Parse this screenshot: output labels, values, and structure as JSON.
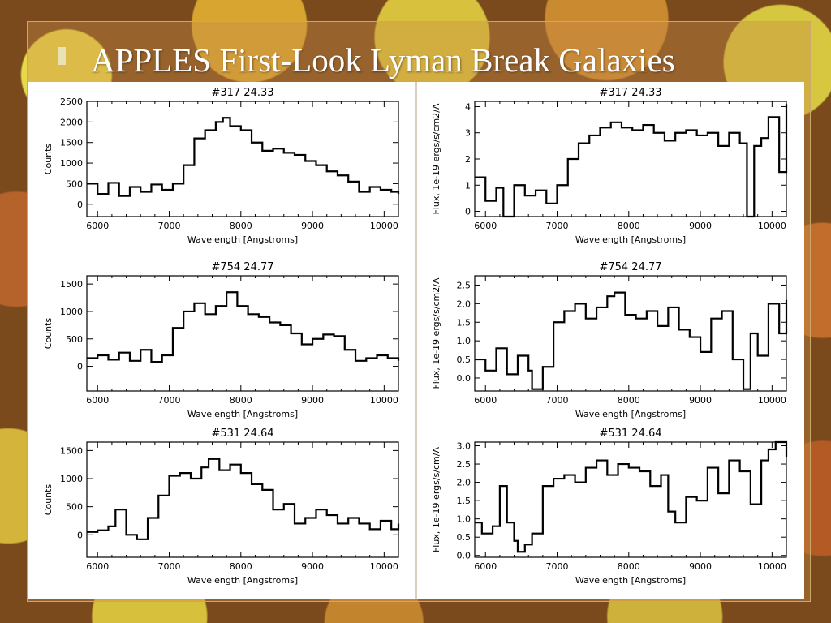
{
  "slide": {
    "title": "APPLES First-Look Lyman Break Galaxies"
  },
  "colors": {
    "line": "#000000",
    "panel": "#ffffff",
    "title": "#ffffff"
  },
  "chart_data": [
    {
      "type": "line",
      "title": "#317    24.33",
      "xlabel": "Wavelength [Angstroms]",
      "ylabel": "Counts",
      "xlim": [
        5850,
        10200
      ],
      "ylim": [
        -300,
        2500
      ],
      "xticks": [
        6000,
        7000,
        8000,
        9000,
        10000
      ],
      "yticks": [
        0,
        500,
        1000,
        1500,
        2000,
        2500
      ],
      "x": [
        5850,
        6000,
        6150,
        6300,
        6450,
        6600,
        6750,
        6900,
        7050,
        7200,
        7350,
        7500,
        7650,
        7750,
        7850,
        8000,
        8150,
        8300,
        8450,
        8600,
        8750,
        8900,
        9050,
        9200,
        9350,
        9500,
        9650,
        9800,
        9950,
        10100,
        10200
      ],
      "values": [
        500,
        250,
        520,
        200,
        420,
        300,
        480,
        350,
        500,
        950,
        1600,
        1800,
        2000,
        2100,
        1900,
        1800,
        1500,
        1300,
        1350,
        1250,
        1200,
        1050,
        950,
        800,
        700,
        550,
        300,
        420,
        350,
        300,
        250
      ]
    },
    {
      "type": "line",
      "title": "#317    24.33",
      "xlabel": "Wavelength [Angstroms]",
      "ylabel": "Flux, 1e-19 ergs/s/cm2/A",
      "xlim": [
        5850,
        10200
      ],
      "ylim": [
        -0.2,
        4.2
      ],
      "xticks": [
        6000,
        7000,
        8000,
        9000,
        10000
      ],
      "yticks": [
        0,
        1,
        2,
        3,
        4
      ],
      "x": [
        5850,
        6000,
        6150,
        6250,
        6400,
        6550,
        6700,
        6850,
        7000,
        7150,
        7300,
        7450,
        7600,
        7750,
        7900,
        8050,
        8200,
        8350,
        8500,
        8650,
        8800,
        8950,
        9100,
        9250,
        9400,
        9550,
        9650,
        9750,
        9850,
        9950,
        10100,
        10200
      ],
      "values": [
        1.3,
        0.4,
        0.9,
        -0.2,
        1.0,
        0.6,
        0.8,
        0.3,
        1.0,
        2.0,
        2.6,
        2.9,
        3.2,
        3.4,
        3.2,
        3.1,
        3.3,
        3.0,
        2.7,
        3.0,
        3.1,
        2.9,
        3.0,
        2.5,
        3.0,
        2.6,
        -0.2,
        2.5,
        2.8,
        3.6,
        1.5,
        4.1
      ]
    },
    {
      "type": "line",
      "title": "#754    24.77",
      "xlabel": "Wavelength [Angstroms]",
      "ylabel": "Counts",
      "xlim": [
        5850,
        10200
      ],
      "ylim": [
        -450,
        1650
      ],
      "xticks": [
        6000,
        7000,
        8000,
        9000,
        10000
      ],
      "yticks": [
        0,
        500,
        1000,
        1500
      ],
      "x": [
        5850,
        6000,
        6150,
        6300,
        6450,
        6600,
        6750,
        6900,
        7050,
        7200,
        7350,
        7500,
        7650,
        7800,
        7950,
        8100,
        8250,
        8400,
        8550,
        8700,
        8850,
        9000,
        9150,
        9300,
        9450,
        9600,
        9750,
        9900,
        10050,
        10200
      ],
      "values": [
        150,
        200,
        120,
        250,
        100,
        300,
        80,
        200,
        700,
        1000,
        1150,
        950,
        1100,
        1350,
        1100,
        950,
        900,
        800,
        750,
        600,
        400,
        500,
        580,
        550,
        300,
        100,
        150,
        200,
        150,
        100
      ]
    },
    {
      "type": "line",
      "title": "#754    24.77",
      "xlabel": "Wavelength [Angstroms]",
      "ylabel": "Flux, 1e-19 ergs/s/cm2/A",
      "xlim": [
        5850,
        10200
      ],
      "ylim": [
        -0.35,
        2.75
      ],
      "xticks": [
        6000,
        7000,
        8000,
        9000,
        10000
      ],
      "yticks": [
        0.0,
        0.5,
        1.0,
        1.5,
        2.0,
        2.5
      ],
      "x": [
        5850,
        6000,
        6150,
        6300,
        6450,
        6600,
        6650,
        6800,
        6950,
        7100,
        7250,
        7400,
        7550,
        7700,
        7800,
        7950,
        8100,
        8250,
        8400,
        8550,
        8700,
        8850,
        9000,
        9150,
        9300,
        9450,
        9600,
        9700,
        9800,
        9950,
        10100,
        10200
      ],
      "values": [
        0.5,
        0.2,
        0.8,
        0.1,
        0.6,
        0.2,
        -0.3,
        0.3,
        1.5,
        1.8,
        2.0,
        1.6,
        1.9,
        2.2,
        2.3,
        1.7,
        1.6,
        1.8,
        1.4,
        1.9,
        1.3,
        1.1,
        0.7,
        1.6,
        1.8,
        0.5,
        -0.3,
        1.2,
        0.6,
        2.0,
        1.2,
        2.1
      ]
    },
    {
      "type": "line",
      "title": "#531    24.64",
      "xlabel": "Wavelength [Angstroms]",
      "ylabel": "Counts",
      "xlim": [
        5850,
        10200
      ],
      "ylim": [
        -400,
        1650
      ],
      "xticks": [
        6000,
        7000,
        8000,
        9000,
        10000
      ],
      "yticks": [
        0,
        500,
        1000,
        1500
      ],
      "x": [
        5850,
        6000,
        6150,
        6250,
        6400,
        6550,
        6700,
        6850,
        7000,
        7150,
        7300,
        7450,
        7550,
        7700,
        7850,
        8000,
        8150,
        8300,
        8450,
        8600,
        8750,
        8900,
        9050,
        9200,
        9350,
        9500,
        9650,
        9800,
        9950,
        10100,
        10200
      ],
      "values": [
        50,
        80,
        150,
        450,
        0,
        -80,
        300,
        700,
        1050,
        1100,
        1000,
        1200,
        1350,
        1150,
        1250,
        1100,
        900,
        800,
        450,
        550,
        200,
        300,
        450,
        350,
        200,
        300,
        200,
        100,
        250,
        100,
        200
      ]
    },
    {
      "type": "line",
      "title": "#531    24.64",
      "xlabel": "Wavelength [Angstroms]",
      "ylabel": "Flux, 1e-19 ergs/s/cm/A",
      "xlim": [
        5850,
        10200
      ],
      "ylim": [
        -0.05,
        3.1
      ],
      "xticks": [
        6000,
        7000,
        8000,
        9000,
        10000
      ],
      "yticks": [
        0.0,
        0.5,
        1.0,
        1.5,
        2.0,
        2.5,
        3.0
      ],
      "x": [
        5850,
        5950,
        6100,
        6200,
        6300,
        6400,
        6450,
        6550,
        6650,
        6800,
        6950,
        7100,
        7250,
        7400,
        7550,
        7700,
        7850,
        8000,
        8150,
        8300,
        8450,
        8550,
        8650,
        8800,
        8950,
        9100,
        9250,
        9400,
        9550,
        9700,
        9850,
        9950,
        10050,
        10200
      ],
      "values": [
        0.9,
        0.6,
        0.8,
        1.9,
        0.9,
        0.4,
        0.1,
        0.3,
        0.6,
        1.9,
        2.1,
        2.2,
        2.0,
        2.4,
        2.6,
        2.2,
        2.5,
        2.4,
        2.3,
        1.9,
        2.2,
        1.2,
        0.9,
        1.6,
        1.5,
        2.4,
        1.7,
        2.6,
        2.3,
        1.4,
        2.6,
        2.9,
        3.1,
        2.7
      ]
    }
  ]
}
